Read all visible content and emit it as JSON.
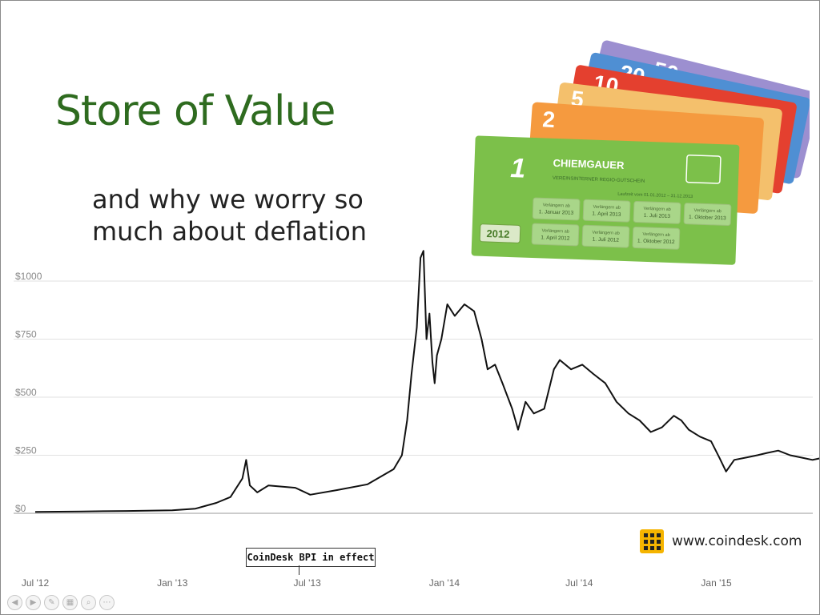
{
  "slide": {
    "title": "Store of Value",
    "subtitle": "and why we worry so much about deflation",
    "annotation": "CoinDesk BPI in effect",
    "brand_url": "www.coindesk.com"
  },
  "banknotes": [
    {
      "value": "50",
      "color": "#9c8fd0"
    },
    {
      "value": "20",
      "color": "#4f8fd3"
    },
    {
      "value": "10",
      "color": "#e4402f"
    },
    {
      "value": "5",
      "color": "#f4c06c"
    },
    {
      "value": "2",
      "color": "#f59a3f"
    },
    {
      "value": "1",
      "color": "#7cc04a"
    }
  ],
  "banknote_front": {
    "label": "CHIEMGAUER",
    "year": "2012",
    "subtitle": "VEREINSINTERNER REGIO-GUTSCHEIN",
    "validity": "Laufzeit vom 01.01.2012 – 31.12.2013",
    "stamps_prefix": "Verlängern ab",
    "stamps": [
      "1. Januar 2013",
      "1. April 2013",
      "1. Juli 2013",
      "1. Oktober 2013",
      "1. April 2012",
      "1. Juli 2012",
      "1. Oktober 2012"
    ]
  },
  "chart_data": {
    "type": "line",
    "title": "",
    "xlabel": "",
    "ylabel": "",
    "y_ticks": [
      "$0",
      "$250",
      "$500",
      "$750",
      "$1000"
    ],
    "y_tick_values": [
      0,
      250,
      500,
      750,
      1000
    ],
    "x_ticks": [
      "Jul '12",
      "Jan '13",
      "Jul '13",
      "Jan '14",
      "Jul '14",
      "Jan '15"
    ],
    "ylim": [
      0,
      1000
    ],
    "grid": true,
    "series": [
      {
        "color": "#111111",
        "x": [
          "2012-07-01",
          "2012-09-01",
          "2012-11-01",
          "2013-01-01",
          "2013-02-01",
          "2013-03-01",
          "2013-03-20",
          "2013-04-05",
          "2013-04-10",
          "2013-04-15",
          "2013-04-25",
          "2013-05-10",
          "2013-06-15",
          "2013-07-05",
          "2013-08-10",
          "2013-09-20",
          "2013-10-25",
          "2013-11-05",
          "2013-11-12",
          "2013-11-18",
          "2013-11-25",
          "2013-11-30",
          "2013-12-04",
          "2013-12-08",
          "2013-12-12",
          "2013-12-16",
          "2013-12-19",
          "2013-12-22",
          "2013-12-28",
          "2014-01-05",
          "2014-01-15",
          "2014-01-28",
          "2014-02-10",
          "2014-02-20",
          "2014-02-28",
          "2014-03-10",
          "2014-03-20",
          "2014-04-02",
          "2014-04-10",
          "2014-04-20",
          "2014-05-01",
          "2014-05-15",
          "2014-05-28",
          "2014-06-05",
          "2014-06-20",
          "2014-07-05",
          "2014-07-20",
          "2014-08-05",
          "2014-08-20",
          "2014-09-05",
          "2014-09-20",
          "2014-10-05",
          "2014-10-20",
          "2014-11-05",
          "2014-11-15",
          "2014-11-25",
          "2014-12-10",
          "2014-12-25",
          "2015-01-05",
          "2015-01-14",
          "2015-01-25",
          "2015-02-10",
          "2015-02-25",
          "2015-03-10",
          "2015-03-25",
          "2015-04-10",
          "2015-04-25",
          "2015-05-10",
          "2015-05-25",
          "2015-06-05"
        ],
        "y": [
          6,
          8,
          10,
          13,
          20,
          45,
          70,
          150,
          230,
          120,
          90,
          120,
          110,
          80,
          100,
          125,
          190,
          250,
          400,
          600,
          800,
          1100,
          1130,
          750,
          860,
          650,
          560,
          680,
          750,
          900,
          850,
          900,
          870,
          750,
          620,
          640,
          560,
          450,
          360,
          480,
          430,
          450,
          620,
          660,
          620,
          640,
          600,
          560,
          480,
          430,
          400,
          350,
          370,
          420,
          400,
          360,
          330,
          310,
          240,
          180,
          230,
          240,
          250,
          260,
          270,
          250,
          240,
          230,
          240,
          230
        ]
      }
    ]
  }
}
